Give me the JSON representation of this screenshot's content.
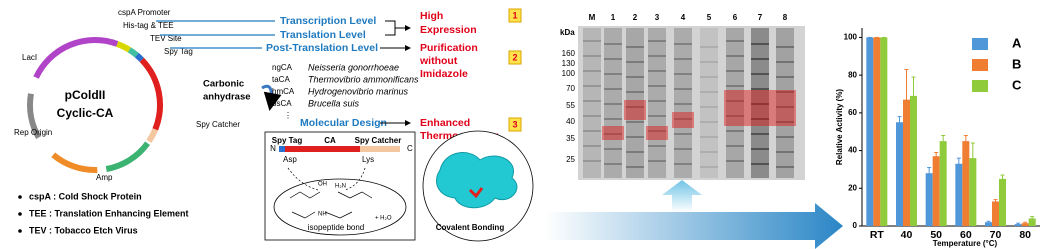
{
  "plasmid": {
    "name": "pColdII",
    "subtitle": "Cyclic-CA",
    "labels": {
      "promoter": "cspA Promoter",
      "his_tag": "His-tag & TEE",
      "tev": "TEV Site",
      "spy_tag": "Spy Tag",
      "laci": "LacI",
      "ca": [
        "Carbonic",
        "anhydrase"
      ],
      "spy_catcher": "Spy Catcher",
      "rep": "Rep Origin",
      "amp": "Amp"
    }
  },
  "abbreviations": [
    "cspA : Cold Shock Protein",
    "TEE : Translation Enhancing Element",
    "TEV : Tobacco Etch Virus"
  ],
  "levels": [
    "Transcription Level",
    "Translation Level",
    "Post-Translation Level",
    "Molecular Design"
  ],
  "outcomes": [
    {
      "lines": [
        "High",
        "Expression"
      ],
      "number": "1"
    },
    {
      "lines": [
        "Purification",
        "without",
        "Imidazole"
      ],
      "number": "2"
    },
    {
      "lines": [
        "Enhanced",
        "Thermostability"
      ],
      "number": "3"
    }
  ],
  "ca_list": [
    {
      "code": "ngCA",
      "species": "Neisseria gonorrhoeae"
    },
    {
      "code": "taCA",
      "species": "Thermovibrio ammonificans"
    },
    {
      "code": "hmCA",
      "species": "Hydrogenovibrio marinus"
    },
    {
      "code": "bsCA",
      "species": "Brucella suis"
    }
  ],
  "ca_more": "⋮",
  "construct": {
    "spy_tag": "Spy Tag",
    "ca": "CA",
    "spy_catcher": "Spy Catcher",
    "n": "N",
    "c": "C",
    "asp": "Asp",
    "lys": "Lys",
    "bond": "isopeptide bond"
  },
  "reaction": {
    "acid": "OH",
    "amine": "H₂N",
    "water": "+ H₂O",
    "amide": "NH"
  },
  "structure_label": "Covalent Bonding",
  "gel": {
    "unit": "kDa",
    "ladder": [
      160,
      130,
      100,
      70,
      55,
      40,
      35,
      25
    ],
    "lanes": [
      "M",
      "1",
      "2",
      "3",
      "4",
      "5",
      "6",
      "7",
      "8"
    ]
  },
  "chart_data": {
    "type": "bar",
    "ylabel": "Relative Activity (%)",
    "xlabel": "Temperature (°C)",
    "categories": [
      "RT",
      "40",
      "50",
      "60",
      "70",
      "80"
    ],
    "series": [
      {
        "name": "A",
        "color": "#4f97d8",
        "values": [
          100,
          55,
          28,
          33,
          2,
          1
        ],
        "errors": [
          0,
          3,
          3,
          3,
          0.5,
          0.5
        ]
      },
      {
        "name": "B",
        "color": "#ef7d32",
        "values": [
          100,
          67,
          37,
          45,
          13,
          1.5
        ],
        "errors": [
          0,
          16,
          2,
          3,
          1,
          0.5
        ]
      },
      {
        "name": "C",
        "color": "#8fcb3a",
        "values": [
          100,
          69,
          45,
          36,
          25,
          4
        ],
        "errors": [
          0,
          10,
          3,
          8,
          2,
          1
        ]
      }
    ],
    "ylim": [
      0,
      105
    ],
    "yticks": [
      0,
      20,
      40,
      60,
      80,
      100
    ],
    "legend": "upper right"
  }
}
